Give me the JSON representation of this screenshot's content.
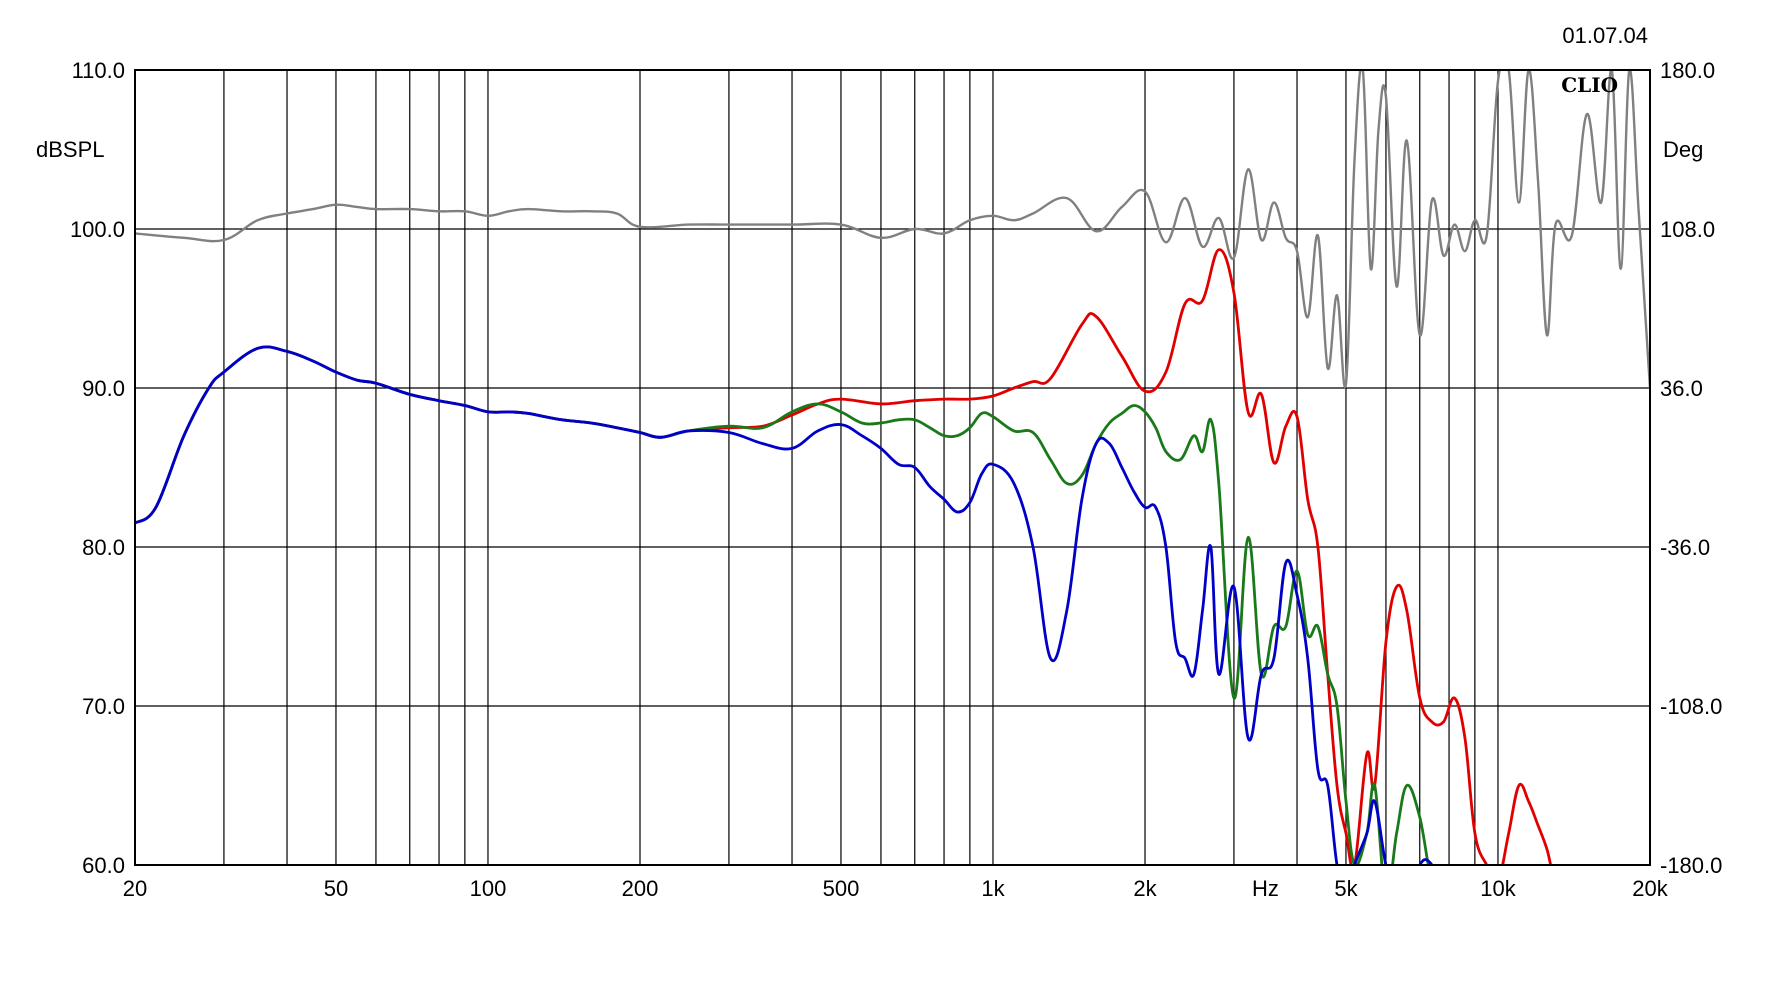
{
  "chart_data": {
    "type": "line",
    "date": "01.07.04",
    "logo": "CLIO",
    "xlabel": "Hz",
    "ylabel_left": "dBSPL",
    "ylabel_right": "Deg",
    "x_scale": "log",
    "xlim": [
      20,
      20000
    ],
    "ylim_left": [
      60,
      110
    ],
    "ylim_right": [
      -180,
      180
    ],
    "grid": true,
    "x_ticks": [
      {
        "value": 20,
        "label": "20"
      },
      {
        "value": 50,
        "label": "50"
      },
      {
        "value": 100,
        "label": "100"
      },
      {
        "value": 200,
        "label": "200"
      },
      {
        "value": 500,
        "label": "500"
      },
      {
        "value": 1000,
        "label": "1k"
      },
      {
        "value": 2000,
        "label": "2k"
      },
      {
        "value": 5000,
        "label": "5k"
      },
      {
        "value": 10000,
        "label": "10k"
      },
      {
        "value": 20000,
        "label": "20k"
      }
    ],
    "x_gridlines": [
      20,
      30,
      40,
      50,
      60,
      70,
      80,
      90,
      100,
      200,
      300,
      400,
      500,
      600,
      700,
      800,
      900,
      1000,
      2000,
      3000,
      4000,
      5000,
      6000,
      7000,
      8000,
      9000,
      10000,
      20000
    ],
    "y_ticks_left": [
      "110.0",
      "100.0",
      "90.0",
      "80.0",
      "70.0",
      "60.0"
    ],
    "y_ticks_right": [
      "180.0",
      "108.0",
      "36.0",
      "-36.0",
      "-108.0",
      "-180.0"
    ],
    "series": [
      {
        "color": "#808080",
        "axis": "right",
        "x": [
          20,
          25,
          30,
          35,
          40,
          45,
          50,
          55,
          60,
          70,
          80,
          90,
          100,
          110,
          120,
          140,
          160,
          180,
          200,
          250,
          300,
          400,
          500,
          600,
          700,
          800,
          900,
          1000,
          1100,
          1200,
          1400,
          1600,
          1800,
          2000,
          2200,
          2400,
          2600,
          2800,
          3000,
          3200,
          3400,
          3600,
          3800,
          4000,
          4200,
          4400,
          4600,
          4800,
          5000,
          5200,
          5400,
          5600,
          5800,
          6000,
          6300,
          6600,
          7000,
          7400,
          7800,
          8200,
          8600,
          9000,
          9500,
          10000,
          10500,
          11000,
          11500,
          12000,
          12500,
          13000,
          14000,
          15000,
          16000,
          16800,
          17500,
          18200,
          19000,
          20000
        ],
        "y": [
          106,
          104,
          103,
          112,
          115,
          117,
          119,
          118,
          117,
          117,
          116,
          116,
          114,
          116,
          117,
          116,
          116,
          115,
          109,
          110,
          110,
          110,
          110,
          104,
          108,
          106,
          112,
          114,
          112,
          115,
          122,
          107,
          118,
          125,
          102,
          122,
          100,
          113,
          95,
          135,
          103,
          120,
          104,
          98,
          68,
          105,
          45,
          78,
          38,
          140,
          180,
          90,
          153,
          168,
          82,
          148,
          60,
          121,
          96,
          110,
          98,
          112,
          105,
          175,
          180,
          120,
          180,
          130,
          60,
          110,
          105,
          160,
          120,
          180,
          90,
          180,
          115,
          36
        ]
      },
      {
        "color": "#e00000",
        "axis": "left",
        "x": [
          20,
          22,
          25,
          28,
          30,
          35,
          40,
          45,
          50,
          55,
          60,
          70,
          80,
          90,
          100,
          110,
          120,
          140,
          160,
          180,
          200,
          220,
          250,
          300,
          350,
          400,
          450,
          500,
          600,
          700,
          800,
          900,
          1000,
          1100,
          1200,
          1300,
          1500,
          1600,
          1800,
          2000,
          2200,
          2400,
          2600,
          2800,
          3000,
          3200,
          3400,
          3600,
          3800,
          4000,
          4200,
          4400,
          4600,
          4800,
          5000,
          5200,
          5500,
          5700,
          6000,
          6300,
          6600,
          7000,
          7400,
          7800,
          8200,
          8600,
          9000,
          9500,
          10000,
          10500,
          11000,
          11500,
          12000,
          12500,
          13000,
          14000
        ],
        "y": [
          81.5,
          82.5,
          87,
          90,
          91,
          92.5,
          92.3,
          91.7,
          91,
          90.5,
          90.3,
          89.6,
          89.2,
          88.9,
          88.5,
          88.5,
          88.4,
          88,
          87.8,
          87.5,
          87.2,
          86.9,
          87.3,
          87.5,
          87.6,
          88.3,
          89,
          89.3,
          89,
          89.2,
          89.3,
          89.3,
          89.5,
          90,
          90.4,
          90.6,
          94,
          94.5,
          92,
          89.8,
          91,
          95.3,
          95.5,
          98.7,
          96,
          88.5,
          89.6,
          85.3,
          87.6,
          88.2,
          83,
          80,
          72,
          65,
          62,
          60,
          67,
          65,
          74,
          77.5,
          76,
          70.5,
          69,
          69,
          70.5,
          68,
          62,
          60,
          59,
          62,
          65,
          64,
          62.5,
          61,
          59,
          58
        ]
      },
      {
        "color": "#1a7a1a",
        "axis": "left",
        "x": [
          20,
          22,
          25,
          28,
          30,
          35,
          40,
          45,
          50,
          55,
          60,
          70,
          80,
          90,
          100,
          110,
          120,
          140,
          160,
          180,
          200,
          220,
          250,
          300,
          350,
          400,
          450,
          500,
          550,
          600,
          650,
          700,
          750,
          800,
          850,
          900,
          950,
          1000,
          1100,
          1200,
          1300,
          1400,
          1500,
          1600,
          1700,
          1800,
          1900,
          2000,
          2100,
          2200,
          2350,
          2500,
          2600,
          2700,
          2800,
          3000,
          3200,
          3400,
          3600,
          3800,
          4000,
          4200,
          4400,
          4600,
          4800,
          5000,
          5200,
          5500,
          5700,
          6000,
          6300,
          6600,
          7000,
          7400,
          7800
        ],
        "y": [
          81.5,
          82.5,
          87,
          90,
          91,
          92.5,
          92.3,
          91.7,
          91,
          90.5,
          90.3,
          89.6,
          89.2,
          88.9,
          88.5,
          88.5,
          88.4,
          88,
          87.8,
          87.5,
          87.2,
          86.9,
          87.3,
          87.6,
          87.5,
          88.5,
          89,
          88.5,
          87.8,
          87.8,
          88,
          88,
          87.5,
          87,
          87,
          87.5,
          88.4,
          88.2,
          87.3,
          87.2,
          85.5,
          84,
          84.5,
          86.5,
          87.8,
          88.4,
          88.9,
          88.5,
          87.5,
          86,
          85.5,
          87,
          86,
          88,
          84,
          70.5,
          80.6,
          72,
          75,
          75,
          78.5,
          74.5,
          75,
          72,
          70,
          64,
          60,
          62,
          65,
          58,
          62,
          65,
          63,
          59,
          59
        ]
      },
      {
        "color": "#0000c8",
        "axis": "left",
        "x": [
          20,
          22,
          25,
          28,
          30,
          35,
          40,
          45,
          50,
          55,
          60,
          70,
          80,
          90,
          100,
          110,
          120,
          140,
          160,
          180,
          200,
          220,
          250,
          300,
          350,
          400,
          450,
          500,
          550,
          600,
          650,
          700,
          750,
          800,
          850,
          900,
          950,
          1000,
          1100,
          1200,
          1300,
          1400,
          1500,
          1600,
          1700,
          1800,
          1900,
          2000,
          2100,
          2200,
          2300,
          2400,
          2500,
          2600,
          2700,
          2800,
          3000,
          3200,
          3400,
          3600,
          3800,
          4000,
          4200,
          4400,
          4600,
          4800,
          5000,
          5200,
          5500,
          5700,
          6000,
          6300,
          6600,
          7000,
          7400,
          7800
        ],
        "y": [
          81.5,
          82.5,
          87,
          90,
          91,
          92.5,
          92.3,
          91.7,
          91,
          90.5,
          90.3,
          89.6,
          89.2,
          88.9,
          88.5,
          88.5,
          88.4,
          88,
          87.8,
          87.5,
          87.2,
          86.9,
          87.3,
          87.2,
          86.5,
          86.2,
          87.3,
          87.7,
          87,
          86.2,
          85.2,
          85,
          83.8,
          83,
          82.2,
          82.8,
          84.6,
          85.2,
          84,
          80,
          73,
          76,
          83,
          86.5,
          86.5,
          85,
          83.5,
          82.5,
          82.5,
          80,
          74,
          73,
          72,
          76,
          80,
          72,
          77.5,
          68,
          72,
          73,
          79,
          77,
          73,
          66,
          65,
          60,
          58,
          60,
          62,
          64,
          60,
          58,
          57,
          60,
          60,
          58
        ]
      }
    ]
  }
}
